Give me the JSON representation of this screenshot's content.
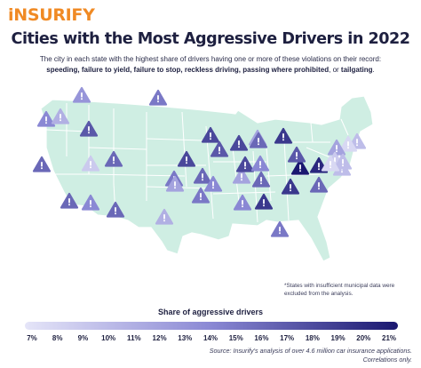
{
  "header": {
    "logo_text": "iNSURIFY",
    "title": "Cities with the Most Aggressive Drivers in 2022",
    "subtitle_line1": "The city in each state with the highest share of drivers having one or more of these violations on their record:",
    "subtitle_violations": "speeding, failure to yield, failure to stop, reckless driving, passing where prohibited",
    "subtitle_connector": ", or ",
    "subtitle_last": "tailgating",
    "subtitle_end": "."
  },
  "colors": {
    "map_land": "#cfeee3",
    "map_border": "#ffffff",
    "scale": [
      "#e5e5f8",
      "#8a88d4",
      "#1a1870"
    ],
    "accent": "#f08a24"
  },
  "map": {
    "icon": "warning-triangle-icon",
    "cities": [
      {
        "state": "WA",
        "share": 0.13
      },
      {
        "state": "OR",
        "share": 0.14
      },
      {
        "state": "ID",
        "share": 0.11
      },
      {
        "state": "MT",
        "share": 0.17
      },
      {
        "state": "NV",
        "share": 0.16
      },
      {
        "state": "CA",
        "share": 0.16
      },
      {
        "state": "UT",
        "share": 0.09
      },
      {
        "state": "AZ",
        "share": 0.16
      },
      {
        "state": "CO",
        "share": 0.14
      },
      {
        "state": "NM",
        "share": 0.16
      },
      {
        "state": "WY",
        "share": 0.15
      },
      {
        "state": "ND",
        "share": 0.18
      },
      {
        "state": "MN",
        "share": 0.17
      },
      {
        "state": "WI",
        "share": 0.18
      },
      {
        "state": "MI",
        "share": 0.12
      },
      {
        "state": "IA",
        "share": 0.18
      },
      {
        "state": "NE",
        "share": 0.15
      },
      {
        "state": "KS",
        "share": 0.15
      },
      {
        "state": "OK",
        "share": 0.12
      },
      {
        "state": "TX",
        "share": 0.11
      },
      {
        "state": "MO",
        "share": 0.16
      },
      {
        "state": "AR",
        "share": 0.14
      },
      {
        "state": "LA",
        "share": 0.12
      },
      {
        "state": "IL",
        "share": 0.18
      },
      {
        "state": "IN",
        "share": 0.16
      },
      {
        "state": "OH",
        "share": 0.19
      },
      {
        "state": "KY",
        "share": 0.14
      },
      {
        "state": "TN",
        "share": 0.16
      },
      {
        "state": "MS",
        "share": 0.14
      },
      {
        "state": "AL",
        "share": 0.19
      },
      {
        "state": "GA",
        "share": 0.19
      },
      {
        "state": "FL",
        "share": 0.16
      },
      {
        "state": "SC",
        "share": 0.21
      },
      {
        "state": "NC",
        "share": 0.2
      },
      {
        "state": "VA",
        "share": 0.17
      },
      {
        "state": "WV",
        "share": 0.15
      },
      {
        "state": "PA",
        "share": 0.09
      },
      {
        "state": "NY",
        "share": 0.1
      },
      {
        "state": "VT",
        "share": 0.1
      },
      {
        "state": "NH",
        "share": 0.08
      },
      {
        "state": "ME",
        "share": 0.12
      },
      {
        "state": "MA",
        "share": 0.09
      },
      {
        "state": "NJ",
        "share": 0.1
      },
      {
        "state": "CT",
        "share": 0.08
      }
    ]
  },
  "note": "*States with insufficient municipal data were excluded from the analysis.",
  "legend": {
    "title": "Share of aggressive drivers",
    "ticks": [
      "7%",
      "8%",
      "9%",
      "10%",
      "11%",
      "12%",
      "13%",
      "14%",
      "15%",
      "16%",
      "17%",
      "18%",
      "19%",
      "20%",
      "21%"
    ]
  },
  "source": {
    "line1": "Source: Insurify's analysis of over 4.6 million car insurance applications.",
    "line2": "Correlations only."
  }
}
